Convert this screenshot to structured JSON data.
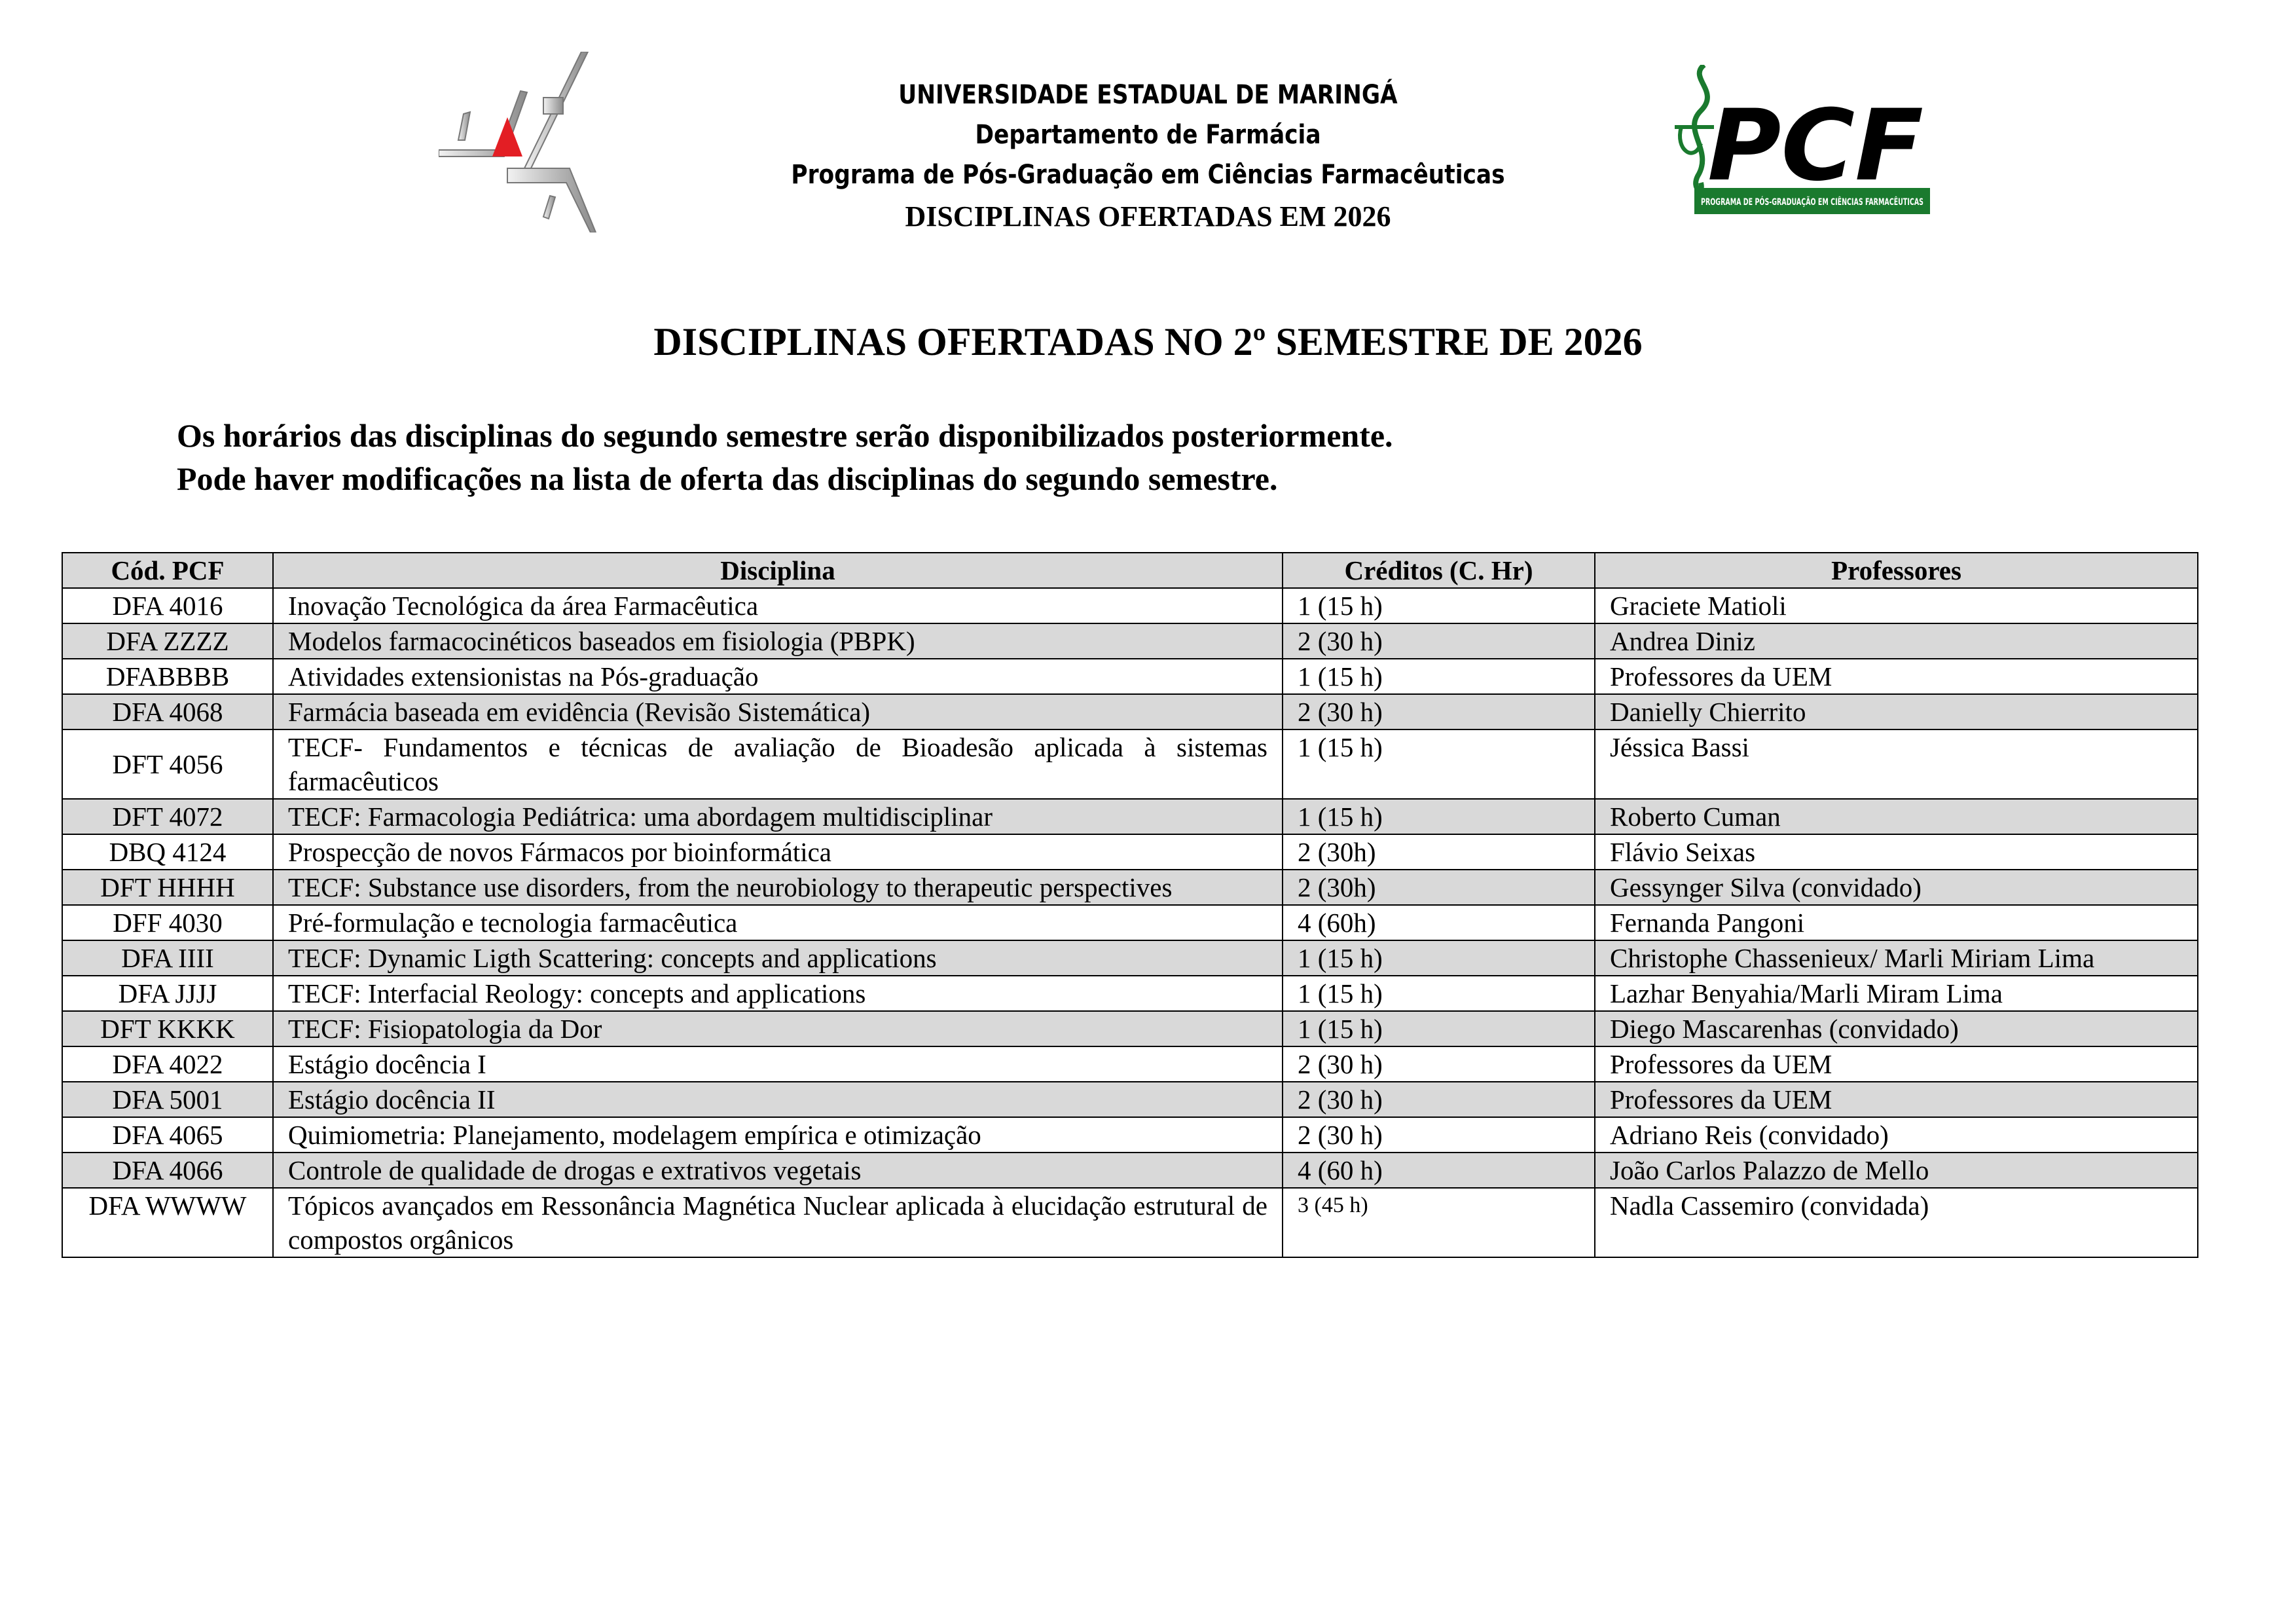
{
  "header": {
    "university": "UNIVERSIDADE ESTADUAL DE MARINGÁ",
    "department": "Departamento de Farmácia",
    "program": "Programa de Pós-Graduação em Ciências Farmacêuticas",
    "subtitle": "DISCIPLINAS OFERTADAS EM 2026",
    "pcf_logo_text": "PCF",
    "pcf_logo_banner": "PROGRAMA DE PÓS-GRADUAÇÃO EM CIÊNCIAS FARMACÊUTICAS"
  },
  "title": "DISCIPLINAS OFERTADAS NO 2º SEMESTRE DE 2026",
  "notes": [
    "Os horários das disciplinas do segundo semestre serão disponibilizados posteriormente.",
    "Pode haver modificações na lista de oferta das disciplinas do segundo semestre."
  ],
  "colors": {
    "row_shade": "#d9d9d9",
    "uem_red": "#e31e24",
    "pcf_green": "#1a7a2e"
  },
  "table": {
    "columns": [
      "Cód. PCF",
      "Disciplina",
      "Créditos (C. Hr)",
      "Professores"
    ],
    "rows": [
      [
        "DFA 4016",
        "Inovação Tecnológica da área Farmacêutica",
        "1 (15 h)",
        "Graciete Matioli"
      ],
      [
        "DFA ZZZZ",
        "Modelos farmacocinéticos baseados em fisiologia (PBPK)",
        "2 (30 h)",
        "Andrea Diniz"
      ],
      [
        "DFABBBB",
        "Atividades extensionistas na Pós-graduação",
        "1 (15 h)",
        "Professores da UEM"
      ],
      [
        "DFA 4068",
        "Farmácia baseada em evidência (Revisão Sistemática)",
        "2 (30 h)",
        "Danielly Chierrito"
      ],
      [
        "DFT 4056",
        "TECF- Fundamentos e técnicas de avaliação de Bioadesão aplicada à sistemas farmacêuticos",
        "1 (15 h)",
        "Jéssica Bassi"
      ],
      [
        "DFT 4072",
        "TECF: Farmacologia Pediátrica: uma abordagem multidisciplinar",
        "1 (15 h)",
        "Roberto Cuman"
      ],
      [
        "DBQ 4124",
        "Prospecção de novos Fármacos por bioinformática",
        "2 (30h)",
        "Flávio Seixas"
      ],
      [
        "DFT HHHH",
        "TECF: Substance use disorders, from the neurobiology to therapeutic perspectives",
        "2 (30h)",
        "Gessynger Silva (convidado)"
      ],
      [
        "DFF 4030",
        "Pré-formulação e tecnologia farmacêutica",
        "4 (60h)",
        "Fernanda Pangoni"
      ],
      [
        "DFA IIII",
        "TECF: Dynamic Ligth Scattering: concepts and applications",
        "1 (15 h)",
        "Christophe Chassenieux/ Marli Miriam Lima"
      ],
      [
        "DFA JJJJ",
        "TECF: Interfacial Reology: concepts and applications",
        "1 (15 h)",
        "Lazhar Benyahia/Marli Miram Lima"
      ],
      [
        "DFT KKKK",
        "TECF: Fisiopatologia da Dor",
        "1 (15 h)",
        "Diego Mascarenhas (convidado)"
      ],
      [
        "DFA 4022",
        "Estágio docência I",
        "2 (30 h)",
        "Professores da UEM"
      ],
      [
        "DFA 5001",
        "Estágio docência II",
        "2 (30 h)",
        "Professores da UEM"
      ],
      [
        "DFA 4065",
        "Quimiometria: Planejamento, modelagem empírica e otimização",
        "2 (30 h)",
        "Adriano Reis (convidado)"
      ],
      [
        "DFA 4066",
        "Controle de qualidade de drogas e extrativos vegetais",
        "4 (60 h)",
        "João Carlos Palazzo de Mello"
      ],
      [
        "DFA WWWW",
        "Tópicos avançados em Ressonância Magnética Nuclear aplicada à elucidação estrutural de compostos orgânicos",
        "3 (45 h)",
        "Nadla Cassemiro (convidada)"
      ]
    ]
  }
}
